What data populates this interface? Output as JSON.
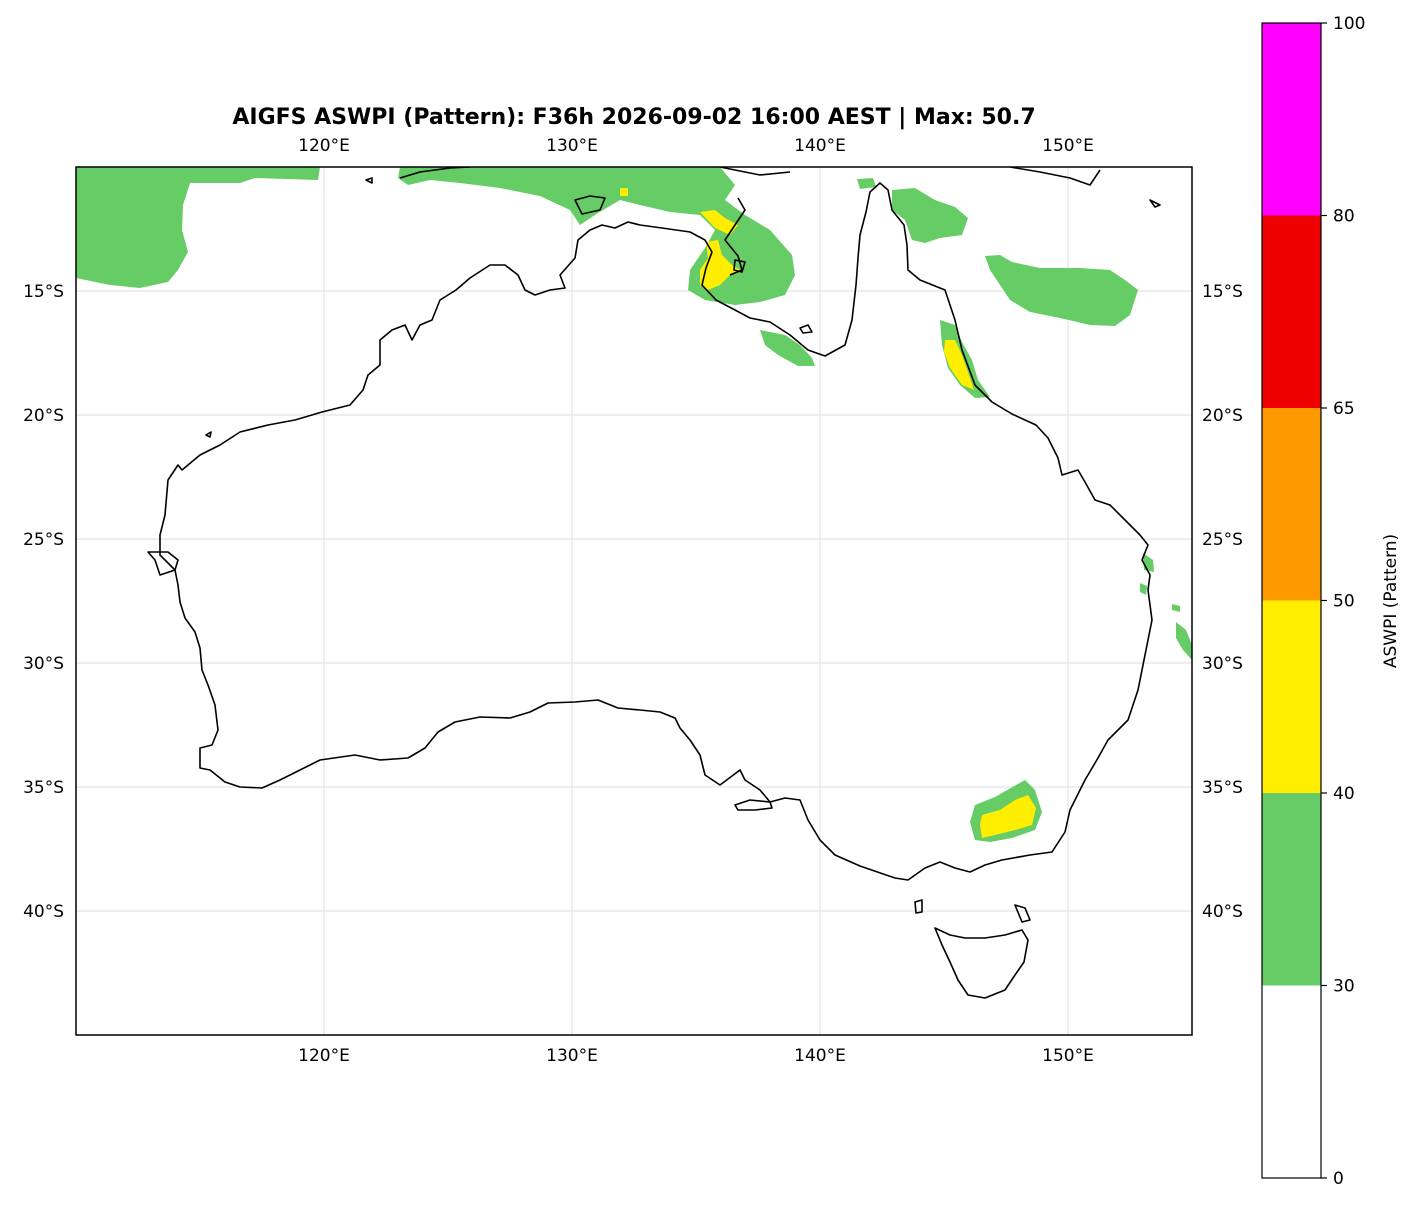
{
  "map": {
    "title": "AIGFS ASWPI (Pattern): F36h 2026-09-02 16:00 AEST | Max: 50.7",
    "lon_ticks": [
      "120°E",
      "130°E",
      "140°E",
      "150°E"
    ],
    "lat_ticks": [
      "15°S",
      "20°S",
      "25°S",
      "30°S",
      "35°S",
      "40°S"
    ],
    "extent": {
      "lon": [
        110,
        155
      ],
      "lat": [
        -45,
        -10
      ]
    },
    "grid": true
  },
  "colorbar": {
    "label": "ASWPI (Pattern)",
    "ticks": [
      "0",
      "30",
      "40",
      "50",
      "65",
      "80",
      "100"
    ],
    "bins": [
      {
        "from": 0,
        "to": 30,
        "color": "#ffffff"
      },
      {
        "from": 30,
        "to": 40,
        "color": "#66cc66"
      },
      {
        "from": 40,
        "to": 50,
        "color": "#ffee00"
      },
      {
        "from": 50,
        "to": 65,
        "color": "#ff9900"
      },
      {
        "from": 65,
        "to": 80,
        "color": "#ee0000"
      },
      {
        "from": 80,
        "to": 100,
        "color": "#ff00ff"
      }
    ]
  }
}
